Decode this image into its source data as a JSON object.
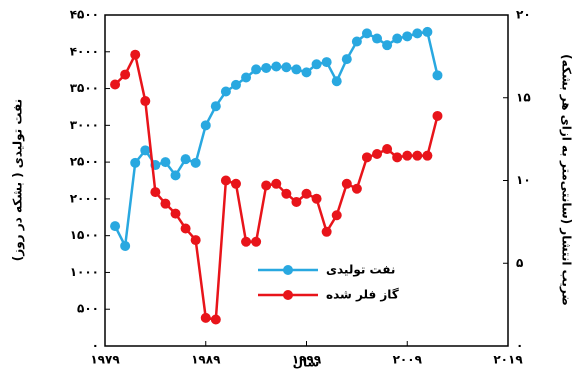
{
  "chart_data": {
    "type": "line",
    "x_label": "سال",
    "y_label": "نفت تولیدی ( بشکه در روز)",
    "y2_label": "ضریب انتشار (سانتی‌متر به ازای هر بشکه)",
    "x": [
      1980,
      1981,
      1982,
      1983,
      1984,
      1985,
      1986,
      1987,
      1988,
      1989,
      1990,
      1991,
      1992,
      1993,
      1994,
      1995,
      1996,
      1997,
      1998,
      1999,
      2000,
      2001,
      2002,
      2003,
      2004,
      2005,
      2006,
      2007,
      2008,
      2009,
      2010,
      2011,
      2012
    ],
    "series": [
      {
        "name": "نفت تولیدی",
        "color": "#29a8e0",
        "axis": "y",
        "values": [
          1630,
          1360,
          2490,
          2660,
          2460,
          2500,
          2320,
          2540,
          2490,
          3000,
          3260,
          3460,
          3550,
          3650,
          3760,
          3780,
          3800,
          3790,
          3760,
          3720,
          3830,
          3860,
          3600,
          3900,
          4140,
          4250,
          4180,
          4090,
          4180,
          4210,
          4250,
          4270,
          3680
        ]
      },
      {
        "name": "گاز فلر شده",
        "color": "#e8141a",
        "axis": "y2",
        "values": [
          15.8,
          16.4,
          17.6,
          14.8,
          9.3,
          8.6,
          8.0,
          7.1,
          6.4,
          1.7,
          1.6,
          10.0,
          9.8,
          6.3,
          6.3,
          9.7,
          9.8,
          9.2,
          8.7,
          9.2,
          8.9,
          6.9,
          7.9,
          9.8,
          9.5,
          11.4,
          11.6,
          11.9,
          11.4,
          11.5,
          11.5,
          11.5,
          13.9
        ]
      }
    ],
    "xlim": [
      1979,
      2019
    ],
    "xticks": [
      {
        "value": 1979,
        "label": "۱۹۷۹"
      },
      {
        "value": 1989,
        "label": "۱۹۸۹"
      },
      {
        "value": 1999,
        "label": "۱۹۹۹"
      },
      {
        "value": 2009,
        "label": "۲۰۰۹"
      },
      {
        "value": 2019,
        "label": "۲۰۱۹"
      }
    ],
    "ylim": [
      0,
      4500
    ],
    "yticks": [
      {
        "value": 0,
        "label": "۰"
      },
      {
        "value": 500,
        "label": "۵۰۰"
      },
      {
        "value": 1000,
        "label": "۱۰۰۰"
      },
      {
        "value": 1500,
        "label": "۱۵۰۰"
      },
      {
        "value": 2000,
        "label": "۲۰۰۰"
      },
      {
        "value": 2500,
        "label": "۲۵۰۰"
      },
      {
        "value": 3000,
        "label": "۳۰۰۰"
      },
      {
        "value": 3500,
        "label": "۳۵۰۰"
      },
      {
        "value": 4000,
        "label": "۴۰۰۰"
      },
      {
        "value": 4500,
        "label": "۴۵۰۰"
      }
    ],
    "y2lim": [
      0,
      20
    ],
    "y2ticks": [
      {
        "value": 0,
        "label": "۰"
      },
      {
        "value": 5,
        "label": "۵"
      },
      {
        "value": 10,
        "label": "۱۰"
      },
      {
        "value": 15,
        "label": "۱۵"
      },
      {
        "value": 20,
        "label": "۲۰"
      }
    ],
    "legend": "lower-right"
  }
}
